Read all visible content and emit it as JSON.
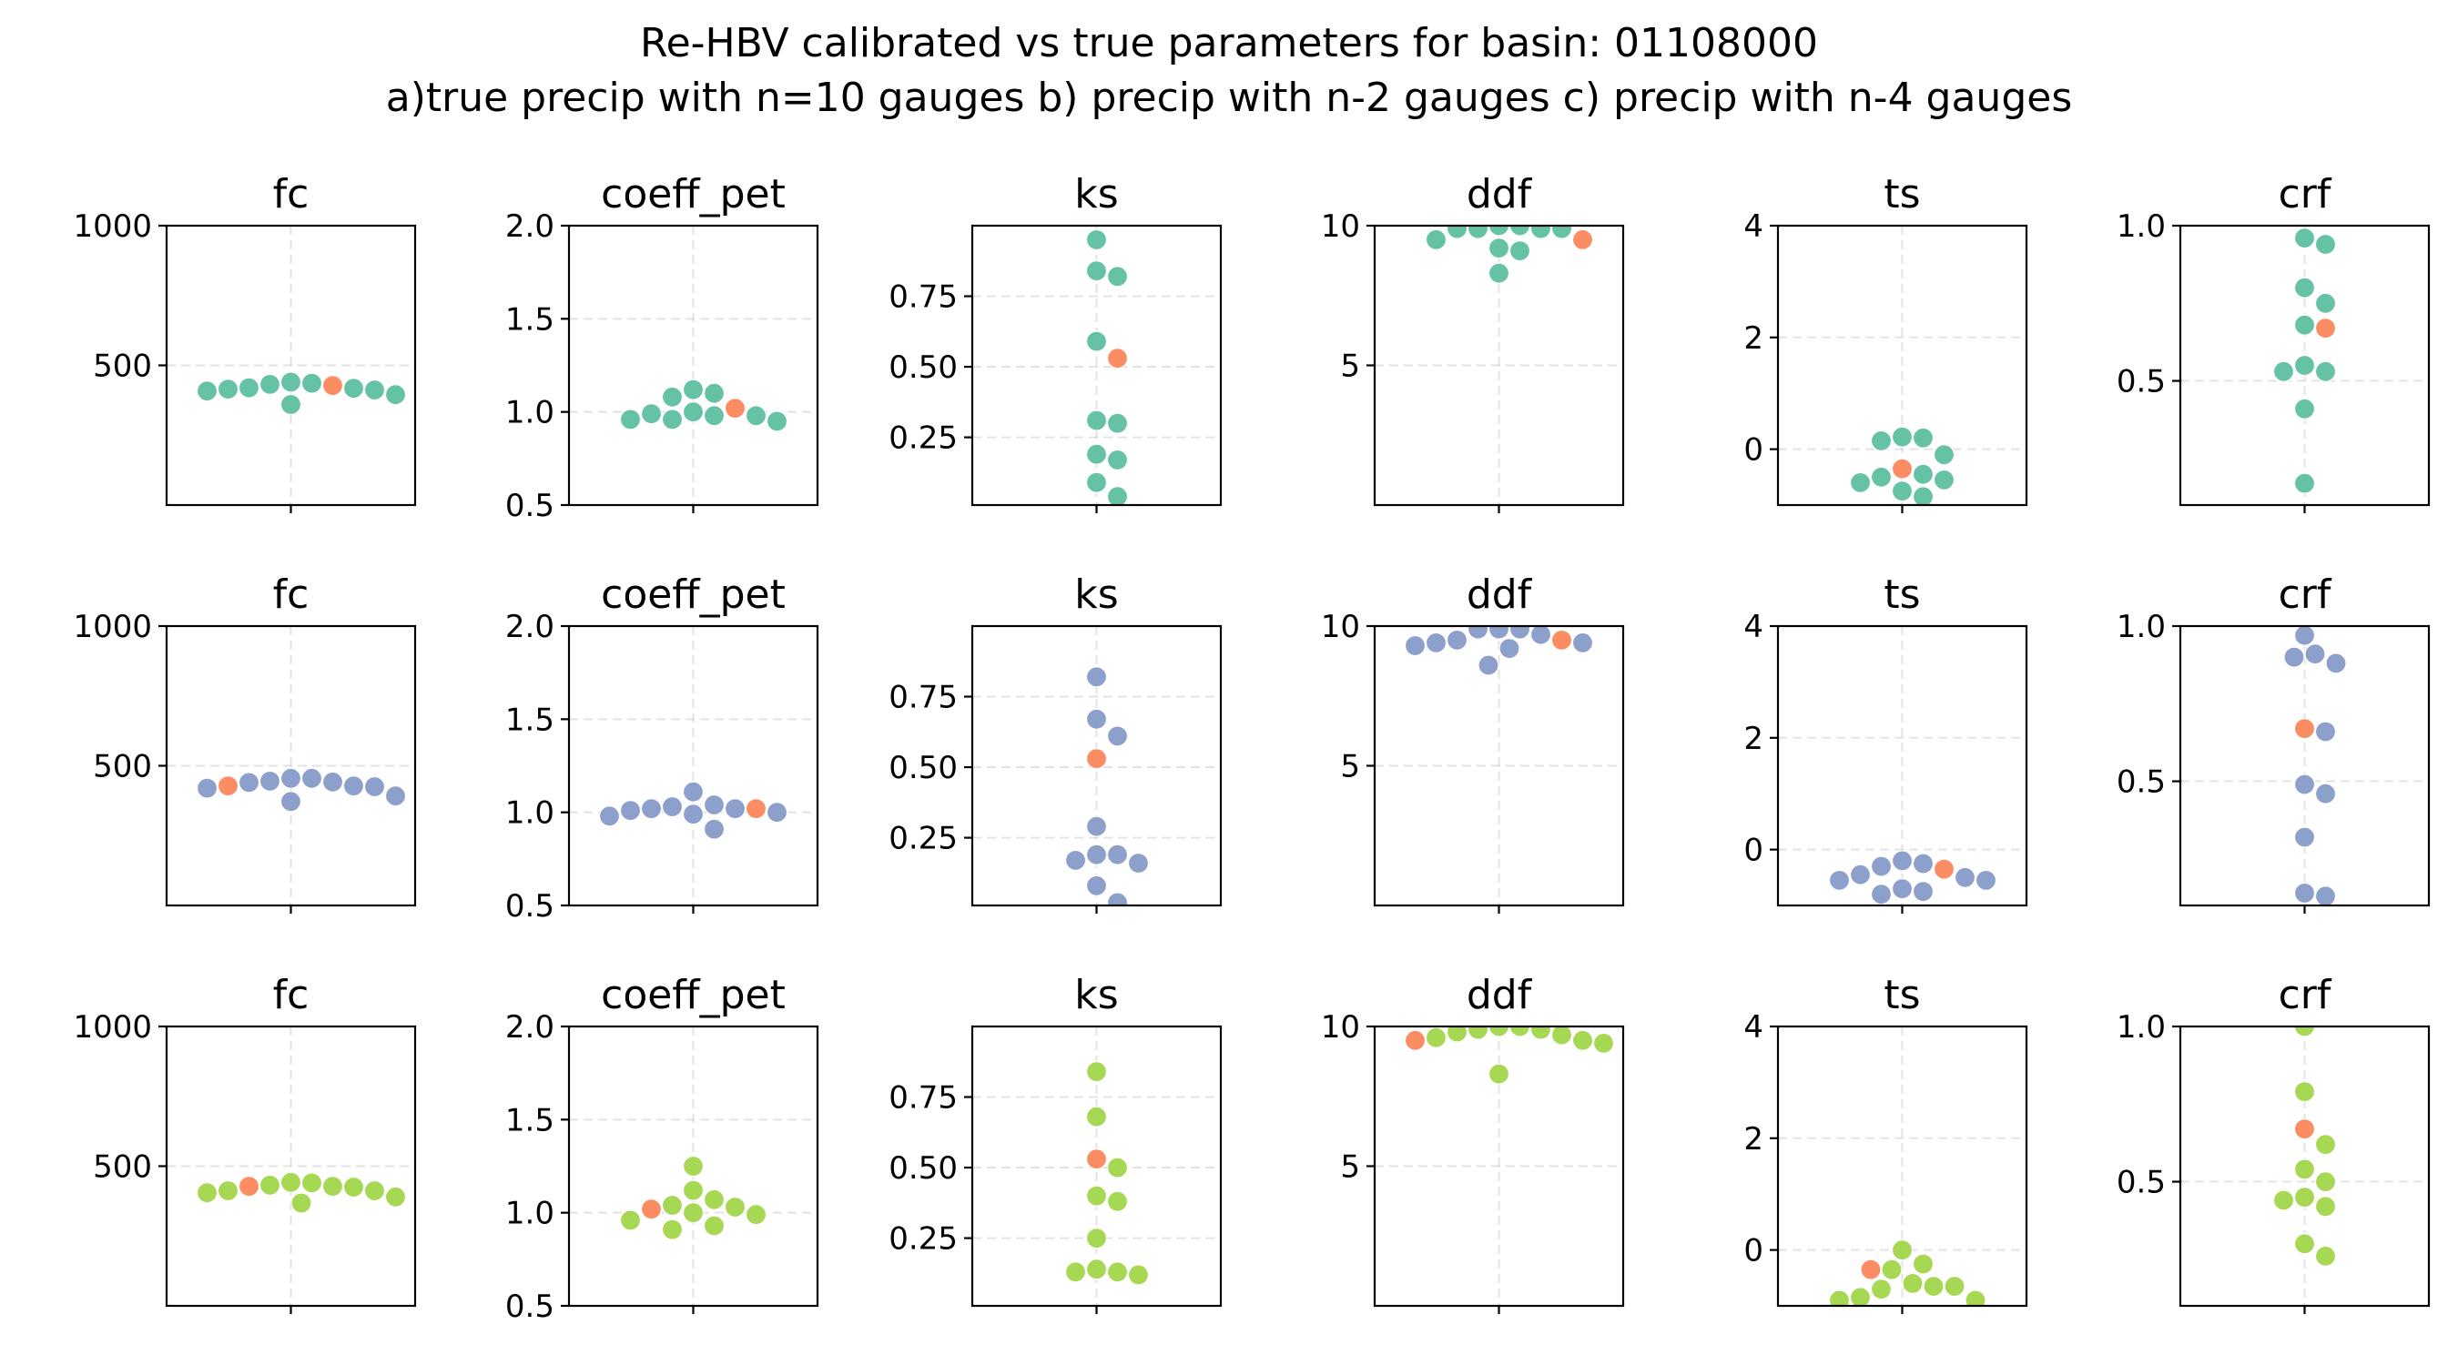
{
  "suptitle": {
    "line1": "Re-HBV calibrated vs true parameters for basin: 01108000",
    "line2": "a)true precip with n=10 gauges b) precip with n-2 gauges c) precip with n-4 gauges"
  },
  "colors": {
    "row_a": "#66c2a5",
    "row_b": "#8da0cb",
    "row_c": "#a6d854",
    "true_value": "#fc8d62"
  },
  "chart_data": [
    {
      "type": "swarm",
      "row": 0,
      "col": 0,
      "title": "fc",
      "ylim": [
        0,
        1000
      ],
      "yticks": [
        500,
        1000
      ],
      "ytick_labels": [
        "500",
        "1000"
      ],
      "grid": true,
      "values": [
        432,
        420,
        415,
        395,
        440,
        360,
        408,
        412,
        418,
        436
      ],
      "true_value": 428
    },
    {
      "type": "swarm",
      "row": 0,
      "col": 1,
      "title": "coeff_pet",
      "ylim": [
        0.5,
        2.0
      ],
      "yticks": [
        0.5,
        1.0,
        1.5,
        2.0
      ],
      "ytick_labels": [
        "0.5",
        "1.0",
        "1.5",
        "2.0"
      ],
      "grid": true,
      "values": [
        0.99,
        0.98,
        0.96,
        1.1,
        0.95,
        1.08,
        0.96,
        1.12,
        0.98,
        1.0
      ],
      "true_value": 1.02
    },
    {
      "type": "swarm",
      "row": 0,
      "col": 2,
      "title": "ks",
      "ylim": [
        0.01,
        1.0
      ],
      "yticks": [
        0.25,
        0.5,
        0.75
      ],
      "ytick_labels": [
        "0.25",
        "0.50",
        "0.75"
      ],
      "grid": true,
      "values": [
        0.95,
        0.84,
        0.82,
        0.59,
        0.31,
        0.3,
        0.19,
        0.17,
        0.09,
        0.04
      ],
      "true_value": 0.53
    },
    {
      "type": "swarm",
      "row": 0,
      "col": 3,
      "title": "ddf",
      "ylim": [
        0,
        10
      ],
      "yticks": [
        5,
        10
      ],
      "ytick_labels": [
        "5",
        "10"
      ],
      "grid": true,
      "values": [
        10.0,
        9.9,
        9.9,
        9.9,
        9.9,
        9.5,
        9.1,
        9.2,
        8.3,
        10.0
      ],
      "true_value": 9.5
    },
    {
      "type": "swarm",
      "row": 0,
      "col": 4,
      "title": "ts",
      "ylim": [
        -1,
        4
      ],
      "yticks": [
        0,
        2,
        4
      ],
      "ytick_labels": [
        "0",
        "2",
        "4"
      ],
      "grid": true,
      "values": [
        0.15,
        0.2,
        0.22,
        -0.1,
        -0.45,
        -0.5,
        -0.55,
        -0.6,
        -0.75,
        -0.85
      ],
      "true_value": -0.35
    },
    {
      "type": "swarm",
      "row": 0,
      "col": 5,
      "title": "crf",
      "ylim": [
        0.1,
        1.0
      ],
      "yticks": [
        0.5,
        1.0
      ],
      "ytick_labels": [
        "0.5",
        "1.0"
      ],
      "grid": true,
      "values": [
        0.96,
        0.94,
        0.8,
        0.75,
        0.68,
        0.53,
        0.53,
        0.55,
        0.41,
        0.17
      ],
      "true_value": 0.67
    },
    {
      "type": "swarm",
      "row": 1,
      "col": 0,
      "title": "fc",
      "ylim": [
        0,
        1000
      ],
      "yticks": [
        500,
        1000
      ],
      "ytick_labels": [
        "500",
        "1000"
      ],
      "grid": true,
      "values": [
        455,
        440,
        428,
        392,
        445,
        372,
        420,
        425,
        442,
        455
      ],
      "true_value": 428
    },
    {
      "type": "swarm",
      "row": 1,
      "col": 1,
      "title": "coeff_pet",
      "ylim": [
        0.5,
        2.0
      ],
      "yticks": [
        0.5,
        1.0,
        1.5,
        2.0
      ],
      "ytick_labels": [
        "0.5",
        "1.0",
        "1.5",
        "2.0"
      ],
      "grid": true,
      "values": [
        1.03,
        1.02,
        1.0,
        0.98,
        1.11,
        0.91,
        0.99,
        1.01,
        1.02,
        1.04
      ],
      "true_value": 1.02
    },
    {
      "type": "swarm",
      "row": 1,
      "col": 2,
      "title": "ks",
      "ylim": [
        0.01,
        1.0
      ],
      "yticks": [
        0.25,
        0.5,
        0.75
      ],
      "ytick_labels": [
        "0.25",
        "0.50",
        "0.75"
      ],
      "grid": true,
      "values": [
        0.82,
        0.67,
        0.61,
        0.29,
        0.19,
        0.16,
        0.17,
        0.19,
        0.08,
        0.02
      ],
      "true_value": 0.53
    },
    {
      "type": "swarm",
      "row": 1,
      "col": 3,
      "title": "ddf",
      "ylim": [
        0,
        10
      ],
      "yticks": [
        5,
        10
      ],
      "ytick_labels": [
        "5",
        "10"
      ],
      "grid": true,
      "values": [
        9.9,
        9.7,
        9.5,
        9.4,
        9.9,
        9.2,
        9.3,
        9.4,
        8.6,
        9.9
      ],
      "true_value": 9.5
    },
    {
      "type": "swarm",
      "row": 1,
      "col": 4,
      "title": "ts",
      "ylim": [
        -1,
        4
      ],
      "yticks": [
        0,
        2,
        4
      ],
      "ytick_labels": [
        "0",
        "2",
        "4"
      ],
      "grid": true,
      "values": [
        -0.5,
        -0.2,
        -0.55,
        -0.3,
        -0.45,
        -0.75,
        -0.8,
        -0.7,
        -0.55,
        -0.25
      ],
      "true_value": -0.35
    },
    {
      "type": "swarm",
      "row": 1,
      "col": 5,
      "title": "crf",
      "ylim": [
        0.1,
        1.0
      ],
      "yticks": [
        0.5,
        1.0
      ],
      "ytick_labels": [
        "0.5",
        "1.0"
      ],
      "grid": true,
      "values": [
        0.97,
        0.91,
        0.88,
        0.9,
        0.66,
        0.49,
        0.46,
        0.32,
        0.14,
        0.13
      ],
      "true_value": 0.67
    },
    {
      "type": "swarm",
      "row": 2,
      "col": 0,
      "title": "fc",
      "ylim": [
        0,
        1000
      ],
      "yticks": [
        500,
        1000
      ],
      "ytick_labels": [
        "500",
        "1000"
      ],
      "grid": true,
      "values": [
        432,
        428,
        412,
        390,
        440,
        368,
        405,
        412,
        425,
        442
      ],
      "true_value": 428
    },
    {
      "type": "swarm",
      "row": 2,
      "col": 1,
      "title": "coeff_pet",
      "ylim": [
        0.5,
        2.0
      ],
      "yticks": [
        0.5,
        1.0,
        1.5,
        2.0
      ],
      "ytick_labels": [
        "0.5",
        "1.0",
        "1.5",
        "2.0"
      ],
      "grid": true,
      "values": [
        1.0,
        0.93,
        1.07,
        1.25,
        1.12,
        0.91,
        1.03,
        0.96,
        0.99,
        1.04
      ],
      "true_value": 1.02
    },
    {
      "type": "swarm",
      "row": 2,
      "col": 2,
      "title": "ks",
      "ylim": [
        0.01,
        1.0
      ],
      "yticks": [
        0.25,
        0.5,
        0.75
      ],
      "ytick_labels": [
        "0.25",
        "0.50",
        "0.75"
      ],
      "grid": true,
      "values": [
        0.84,
        0.68,
        0.5,
        0.4,
        0.38,
        0.25,
        0.13,
        0.12,
        0.13,
        0.14
      ],
      "true_value": 0.53
    },
    {
      "type": "swarm",
      "row": 2,
      "col": 3,
      "title": "ddf",
      "ylim": [
        0,
        10
      ],
      "yticks": [
        5,
        10
      ],
      "ytick_labels": [
        "5",
        "10"
      ],
      "grid": true,
      "values": [
        10.0,
        9.9,
        9.7,
        9.4,
        8.3,
        9.5,
        9.6,
        9.8,
        9.9,
        10.0
      ],
      "true_value": 9.5
    },
    {
      "type": "swarm",
      "row": 2,
      "col": 4,
      "title": "ts",
      "ylim": [
        -1,
        4
      ],
      "yticks": [
        0,
        2,
        4
      ],
      "ytick_labels": [
        "0",
        "2",
        "4"
      ],
      "grid": true,
      "values": [
        0.0,
        -0.35,
        -0.7,
        -0.65,
        -0.9,
        -0.9,
        -0.85,
        -0.25,
        -0.6,
        -0.65
      ],
      "true_value": -0.35
    },
    {
      "type": "swarm",
      "row": 2,
      "col": 5,
      "title": "crf",
      "ylim": [
        0.1,
        1.0
      ],
      "yticks": [
        0.5,
        1.0
      ],
      "ytick_labels": [
        "0.5",
        "1.0"
      ],
      "grid": true,
      "values": [
        1.0,
        0.79,
        0.62,
        0.54,
        0.5,
        0.44,
        0.42,
        0.45,
        0.3,
        0.26
      ],
      "true_value": 0.67
    }
  ]
}
